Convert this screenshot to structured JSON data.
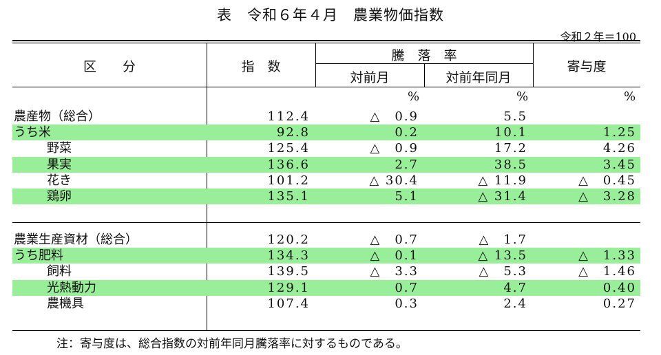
{
  "title": "表　令和６年４月　農業物価指数",
  "base_note": "令和２年＝100",
  "headers": {
    "category": "区　　分",
    "index": "指　数",
    "change": "騰　落　率",
    "mom": "対前月",
    "yoy": "対前年同月",
    "contribution": "寄与度"
  },
  "unit_pct": "%",
  "rows_a": [
    {
      "label": "農産物（総合）",
      "index": "112.4",
      "mom": "△　0.9",
      "yoy": "5.5",
      "contrib": "",
      "green": false,
      "indent": 0
    },
    {
      "label": "うち米",
      "index": "92.8",
      "mom": "0.2",
      "yoy": "10.1",
      "contrib": "1.25",
      "green": true,
      "indent": 0
    },
    {
      "label": "野菜",
      "index": "125.4",
      "mom": "△　0.9",
      "yoy": "17.2",
      "contrib": "4.26",
      "green": false,
      "indent": 1
    },
    {
      "label": "果実",
      "index": "136.6",
      "mom": "2.7",
      "yoy": "38.5",
      "contrib": "3.45",
      "green": true,
      "indent": 1
    },
    {
      "label": "花き",
      "index": "101.2",
      "mom": "△ 30.4",
      "yoy": "△ 11.9",
      "contrib": "△　0.45",
      "green": false,
      "indent": 1
    },
    {
      "label": "鶏卵",
      "index": "135.1",
      "mom": "5.1",
      "yoy": "△ 31.4",
      "contrib": "△　3.28",
      "green": true,
      "indent": 1
    }
  ],
  "rows_b": [
    {
      "label": "農業生産資材（総合）",
      "index": "120.2",
      "mom": "△　0.7",
      "yoy": "△　1.7",
      "contrib": "",
      "green": false,
      "indent": 0
    },
    {
      "label": "うち肥料",
      "index": "134.3",
      "mom": "△　0.1",
      "yoy": "△ 13.5",
      "contrib": "△　1.33",
      "green": true,
      "indent": 0
    },
    {
      "label": "飼料",
      "index": "139.5",
      "mom": "△　3.3",
      "yoy": "△　5.3",
      "contrib": "△　1.46",
      "green": false,
      "indent": 1
    },
    {
      "label": "光熱動力",
      "index": "129.1",
      "mom": "0.7",
      "yoy": "4.7",
      "contrib": "0.40",
      "green": true,
      "indent": 1
    },
    {
      "label": "農機具",
      "index": "107.4",
      "mom": "0.3",
      "yoy": "2.4",
      "contrib": "0.27",
      "green": false,
      "indent": 1
    }
  ],
  "footnote": "注：寄与度は、総合指数の対前年同月騰落率に対するものである。"
}
